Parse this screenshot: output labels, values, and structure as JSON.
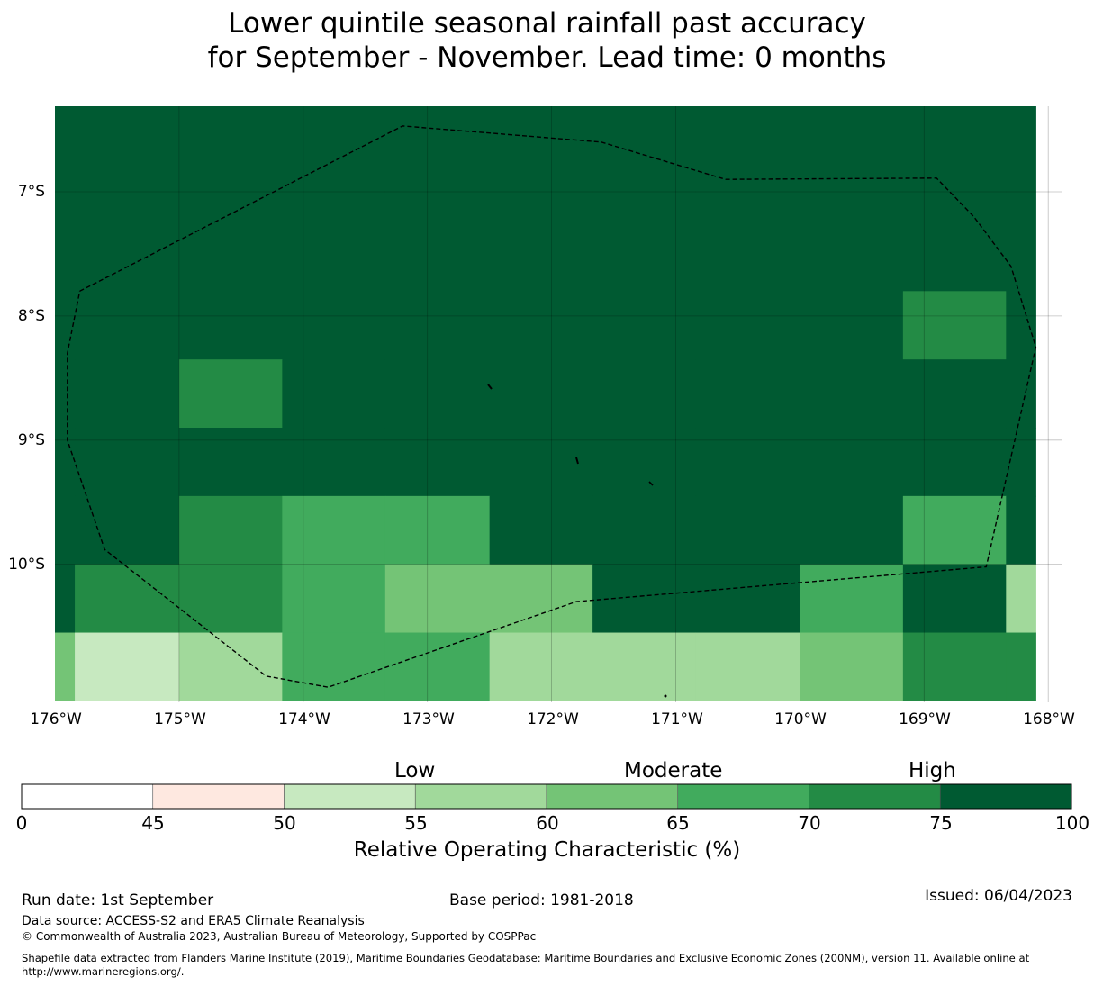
{
  "title": {
    "line1": "Lower quintile seasonal rainfall past accuracy",
    "line2": "for September - November. Lead time: 0 months"
  },
  "map": {
    "lat_ticks": [
      "7°S",
      "8°S",
      "9°S",
      "10°S"
    ],
    "lon_ticks": [
      "176°W",
      "175°W",
      "174°W",
      "173°W",
      "172°W",
      "171°W",
      "170°W",
      "169°W",
      "168°W"
    ],
    "extent": {
      "lon_min": -176,
      "lon_max": -168.1,
      "lat_top": -6.3,
      "lat_bottom": -11.1
    },
    "grid_lat_edges": [
      -6.3,
      -8.35,
      -8.9,
      -9.45,
      -10.0,
      -10.55,
      -11.1
    ],
    "grid_lon_edges": [
      -176,
      -175.84,
      -175.0,
      -174.17,
      -173.34,
      -172.5,
      -171.67,
      -170.84,
      -170.0,
      -169.17,
      -168.34,
      -168.1
    ],
    "grid_values": [
      [
        80,
        80,
        80,
        80,
        80,
        80,
        80,
        80,
        80,
        80,
        80
      ],
      [
        80,
        80,
        72,
        80,
        80,
        80,
        80,
        80,
        80,
        80,
        80
      ],
      [
        80,
        80,
        80,
        80,
        80,
        80,
        80,
        80,
        80,
        80,
        80
      ],
      [
        80,
        80,
        72,
        67,
        67,
        80,
        80,
        80,
        80,
        67,
        80
      ],
      [
        80,
        72,
        72,
        67,
        62,
        62,
        80,
        80,
        67,
        80,
        57
      ],
      [
        62,
        52,
        57,
        67,
        67,
        57,
        57,
        57,
        62,
        72,
        72
      ]
    ],
    "patch_cell": {
      "lat_top": -7.8,
      "lat_bottom": -8.35,
      "lon_left": -169.17,
      "lon_right": -168.34,
      "value": 72
    },
    "eez_boundary": [
      [
        -175.8,
        -7.8
      ],
      [
        -173.2,
        -6.47
      ],
      [
        -171.6,
        -6.6
      ],
      [
        -170.6,
        -6.9
      ],
      [
        -168.9,
        -6.89
      ],
      [
        -168.6,
        -7.2
      ],
      [
        -168.3,
        -7.6
      ],
      [
        -168.1,
        -8.25
      ],
      [
        -168.5,
        -10.02
      ],
      [
        -171.8,
        -10.3
      ],
      [
        -173.8,
        -10.99
      ],
      [
        -174.3,
        -10.9
      ],
      [
        -175.6,
        -9.88
      ],
      [
        -175.9,
        -9.0
      ],
      [
        -175.9,
        -8.3
      ],
      [
        -175.8,
        -7.8
      ]
    ]
  },
  "colorbar": {
    "category_labels": [
      "Low",
      "Moderate",
      "High"
    ],
    "tick_labels": [
      "0",
      "45",
      "50",
      "55",
      "60",
      "65",
      "70",
      "75",
      "100"
    ],
    "bins": [
      0,
      45,
      50,
      55,
      60,
      65,
      70,
      75,
      100
    ],
    "colors": [
      "#ffffff",
      "#fee8e0",
      "#c7e9c0",
      "#a1d99b",
      "#74c476",
      "#41ab5d",
      "#238b45",
      "#005a32"
    ],
    "label": "Relative Operating Characteristic (%)"
  },
  "footer": {
    "run_date": "Run date: 1st September",
    "base_period": "Base period: 1981-2018",
    "issued": "Issued: 06/04/2023",
    "data_source": "Data source: ACCESS-S2 and ERA5 Climate Reanalysis",
    "copyright": "© Commonwealth of Australia 2023, Australian Bureau of Meteorology, Supported by COSPPac",
    "shapefile_note": "Shapefile data extracted from Flanders Marine Institute (2019), Maritime Boundaries Geodatabase: Maritime Boundaries and Exclusive Economic Zones (200NM), version 11. Available online at http://www.marineregions.org/."
  }
}
